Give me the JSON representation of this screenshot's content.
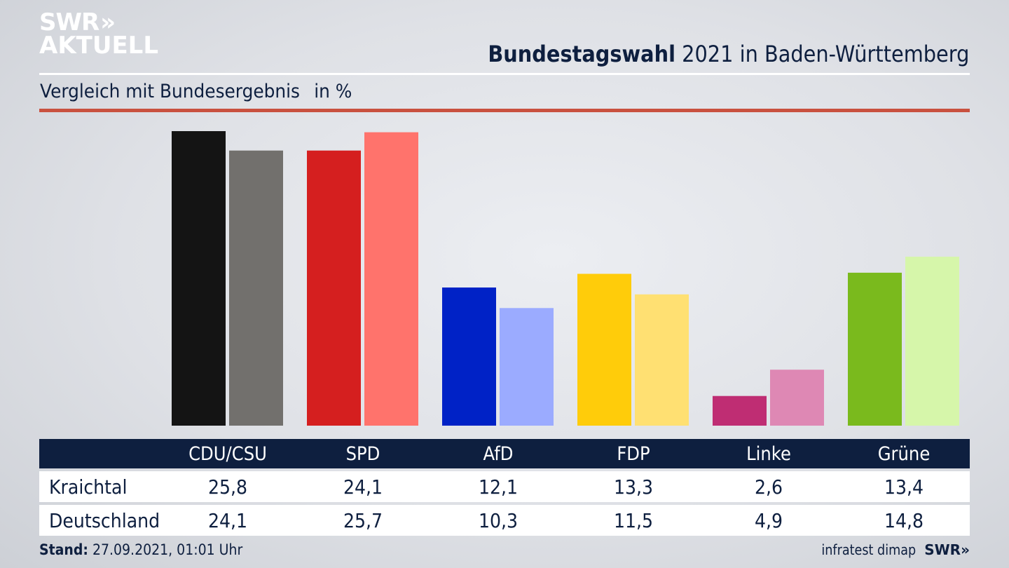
{
  "branding": {
    "logo_line1": "SWR",
    "logo_line2": "AKTUELL",
    "logo_chevron": "»",
    "footer_logo": "SWR»"
  },
  "header": {
    "title_bold": "Bundestagswahl",
    "title_rest": " 2021 in Baden-Württemberg",
    "subtitle": "Vergleich mit Bundesergebnis",
    "unit": "in %"
  },
  "colors": {
    "accent_rule": "#c9513f",
    "table_header_bg": "#0e1f3f",
    "text": "#0e1f3f"
  },
  "chart_data": {
    "type": "bar",
    "title": "Bundestagswahl 2021 in Baden-Württemberg",
    "subtitle": "Vergleich mit Bundesergebnis in %",
    "xlabel": "",
    "ylabel": "%",
    "ylim": [
      0,
      25.8
    ],
    "grid": false,
    "legend": "table-below",
    "categories": [
      "CDU/CSU",
      "SPD",
      "AfD",
      "FDP",
      "Linke",
      "Grüne"
    ],
    "series": [
      {
        "name": "Kraichtal",
        "values": [
          25.8,
          24.1,
          12.1,
          13.3,
          2.6,
          13.4
        ],
        "labels": [
          "25,8",
          "24,1",
          "12,1",
          "13,3",
          "2,6",
          "13,4"
        ],
        "colors": [
          "#141414",
          "#d51f1f",
          "#0022c6",
          "#ffcc0a",
          "#bf2d73",
          "#7aba1d"
        ]
      },
      {
        "name": "Deutschland",
        "values": [
          24.1,
          25.7,
          10.3,
          11.5,
          4.9,
          14.8
        ],
        "labels": [
          "24,1",
          "25,7",
          "10,3",
          "11,5",
          "4,9",
          "14,8"
        ],
        "colors": [
          "#72706d",
          "#ff736c",
          "#9babff",
          "#ffe072",
          "#de88b4",
          "#d6f6aa"
        ]
      }
    ]
  },
  "footer": {
    "stand_label": "Stand:",
    "stand_value": " 27.09.2021, 01:01 Uhr",
    "source": "infratest dimap"
  }
}
